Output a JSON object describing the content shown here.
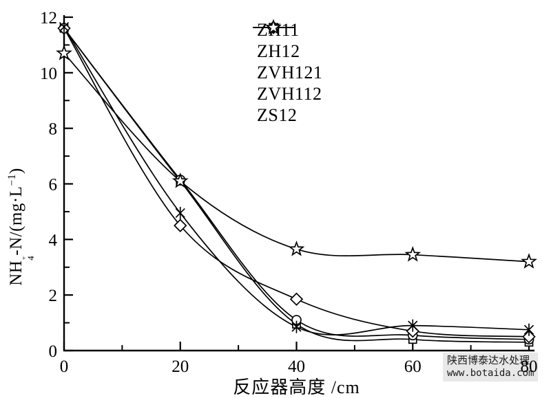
{
  "chart_data": {
    "type": "line",
    "x": [
      0,
      20,
      40,
      60,
      80
    ],
    "series": [
      {
        "name": "ZH11",
        "marker": "square",
        "values": [
          11.6,
          6.1,
          0.95,
          0.4,
          0.3
        ]
      },
      {
        "name": "ZH12",
        "marker": "circle",
        "values": [
          11.6,
          6.15,
          1.1,
          0.55,
          0.4
        ]
      },
      {
        "name": "ZVH121",
        "marker": "diamond",
        "values": [
          11.6,
          4.5,
          1.85,
          0.7,
          0.5
        ]
      },
      {
        "name": "ZVH112",
        "marker": "asterisk",
        "values": [
          11.65,
          4.95,
          0.85,
          0.9,
          0.75
        ]
      },
      {
        "name": "ZS12",
        "marker": "star",
        "values": [
          10.7,
          6.1,
          3.65,
          3.45,
          3.2
        ]
      }
    ],
    "title": "",
    "xlabel": "反应器高度 /cm",
    "ylabel": "NH4+-N/(mg·L-1)",
    "ylabel_parts": {
      "pre": "NH",
      "sub": "4",
      "sup": "+",
      "mid": "-N/(mg·L",
      "sup2": "−1",
      "post": ")"
    },
    "xlim": [
      0,
      80
    ],
    "ylim": [
      0,
      12
    ],
    "xticks": [
      0,
      20,
      40,
      60,
      80
    ],
    "yticks": [
      0,
      2,
      4,
      6,
      8,
      10,
      12
    ],
    "xminorticks": [
      10,
      30,
      50,
      70
    ],
    "yminorticks": [
      1,
      3,
      5,
      7,
      9,
      11
    ],
    "grid": false,
    "legend_position": "upper-center",
    "line_color": "#000000",
    "background_color": "#ffffff"
  },
  "watermark": {
    "line1": "陕西博泰达水处理",
    "line2": "www.botaida.com"
  }
}
